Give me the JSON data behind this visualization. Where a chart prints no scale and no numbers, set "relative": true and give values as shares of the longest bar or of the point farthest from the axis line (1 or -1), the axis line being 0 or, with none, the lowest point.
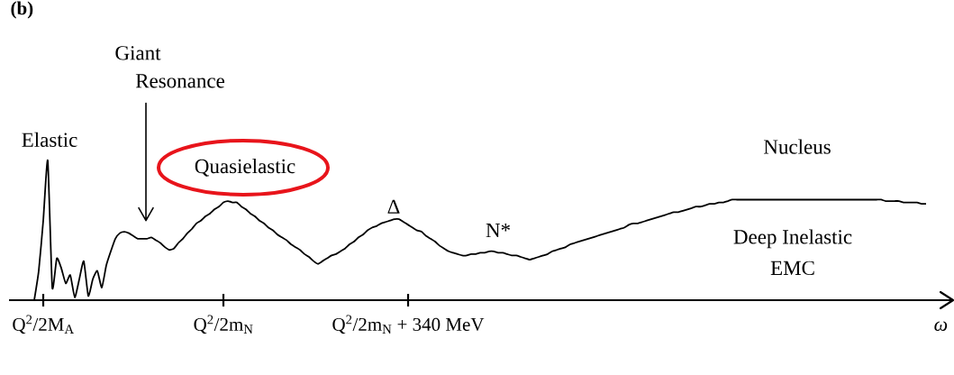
{
  "chart_data": {
    "type": "line",
    "relative": true,
    "title": "(b)",
    "xlabel": "ω",
    "color": "#000000",
    "categories": [
      null,
      null,
      "Q$^{2}$/2M$_{A}$",
      null,
      null,
      null,
      null,
      null,
      null,
      null,
      null,
      null,
      null,
      null,
      null,
      null,
      null,
      null,
      null,
      null,
      null,
      null,
      null,
      null,
      null,
      null,
      null,
      null,
      null,
      null,
      null,
      null,
      null,
      null,
      null,
      null,
      null,
      null,
      null,
      null,
      null,
      null,
      "Q$^{2}$/2m$_{N}$",
      null,
      null,
      null,
      null,
      null,
      null,
      null,
      null,
      null,
      null,
      null,
      null,
      null,
      null,
      null,
      null,
      null,
      null,
      null,
      null,
      null,
      null,
      null,
      null,
      null,
      null,
      null,
      null,
      null,
      null,
      null,
      null,
      null,
      null,
      null,
      null,
      null,
      null,
      null,
      null,
      "Q$^{2}$/2m$_{N}$ + 340 MeV",
      null,
      null,
      null,
      null,
      null,
      null,
      null,
      null,
      null,
      null,
      null,
      null,
      null,
      null,
      null,
      null,
      null,
      null,
      null,
      null,
      null,
      null,
      null,
      null,
      null,
      null,
      null,
      null,
      null,
      null,
      null,
      null,
      null,
      null,
      null,
      null,
      null,
      null,
      null,
      null,
      null,
      null,
      null,
      null,
      null,
      null,
      null,
      null,
      null,
      null,
      null,
      null,
      null,
      null,
      null,
      null,
      null,
      null,
      null,
      null,
      null,
      null,
      null,
      null,
      null,
      null,
      null,
      null,
      null,
      null,
      null,
      null,
      null,
      null,
      null,
      null,
      null,
      null,
      null,
      null,
      null,
      null,
      null,
      null,
      null,
      null,
      null,
      null,
      null,
      null,
      null,
      null,
      null,
      null,
      null,
      null,
      null,
      null,
      null,
      null,
      null,
      null,
      null,
      null,
      null,
      null,
      null,
      null,
      null,
      null,
      null,
      null,
      null,
      null,
      null
    ],
    "values": [
      0,
      0.21,
      0.57,
      1,
      0.09,
      0.3,
      0.23,
      0.12,
      0.18,
      0.02,
      0.15,
      0.28,
      0.03,
      0.15,
      0.21,
      0.09,
      0.25,
      0.35,
      0.44,
      0.48,
      0.49,
      0.48,
      0.46,
      0.44,
      0.44,
      0.44,
      0.45,
      0.43,
      0.41,
      0.38,
      0.36,
      0.37,
      0.41,
      0.44,
      0.48,
      0.51,
      0.55,
      0.57,
      0.6,
      0.62,
      0.65,
      0.67,
      0.7,
      0.71,
      0.7,
      0.7,
      0.67,
      0.65,
      0.62,
      0.6,
      0.57,
      0.55,
      0.52,
      0.5,
      0.47,
      0.45,
      0.43,
      0.4,
      0.38,
      0.36,
      0.33,
      0.31,
      0.28,
      0.26,
      0.28,
      0.3,
      0.32,
      0.33,
      0.35,
      0.37,
      0.4,
      0.42,
      0.45,
      0.47,
      0.5,
      0.52,
      0.53,
      0.55,
      0.56,
      0.57,
      0.58,
      0.58,
      0.56,
      0.54,
      0.52,
      0.5,
      0.49,
      0.46,
      0.44,
      0.42,
      0.39,
      0.37,
      0.35,
      0.34,
      0.33,
      0.32,
      0.32,
      0.33,
      0.33,
      0.34,
      0.34,
      0.35,
      0.35,
      0.34,
      0.34,
      0.33,
      0.32,
      0.32,
      0.31,
      0.3,
      0.29,
      0.3,
      0.31,
      0.32,
      0.33,
      0.35,
      0.36,
      0.37,
      0.38,
      0.4,
      0.41,
      0.42,
      0.43,
      0.44,
      0.45,
      0.46,
      0.47,
      0.48,
      0.49,
      0.5,
      0.51,
      0.52,
      0.54,
      0.55,
      0.55,
      0.56,
      0.57,
      0.58,
      0.59,
      0.6,
      0.61,
      0.62,
      0.63,
      0.63,
      0.64,
      0.65,
      0.66,
      0.67,
      0.67,
      0.68,
      0.69,
      0.69,
      0.7,
      0.7,
      0.71,
      0.72,
      0.72,
      0.72,
      0.72,
      0.72,
      0.72,
      0.72,
      0.72,
      0.72,
      0.72,
      0.72,
      0.72,
      0.72,
      0.72,
      0.72,
      0.72,
      0.72,
      0.72,
      0.72,
      0.72,
      0.72,
      0.72,
      0.72,
      0.72,
      0.72,
      0.72,
      0.72,
      0.72,
      0.72,
      0.72,
      0.72,
      0.72,
      0.72,
      0.72,
      0.71,
      0.71,
      0.71,
      0.71,
      0.7,
      0.7,
      0.7,
      0.7,
      0.69,
      0.69
    ],
    "annotations": [
      "Elastic",
      "Giant",
      "Resonance",
      "Quasielastic",
      "Δ",
      "N*",
      "Nucleus",
      "Deep Inelastic",
      "EMC"
    ]
  }
}
